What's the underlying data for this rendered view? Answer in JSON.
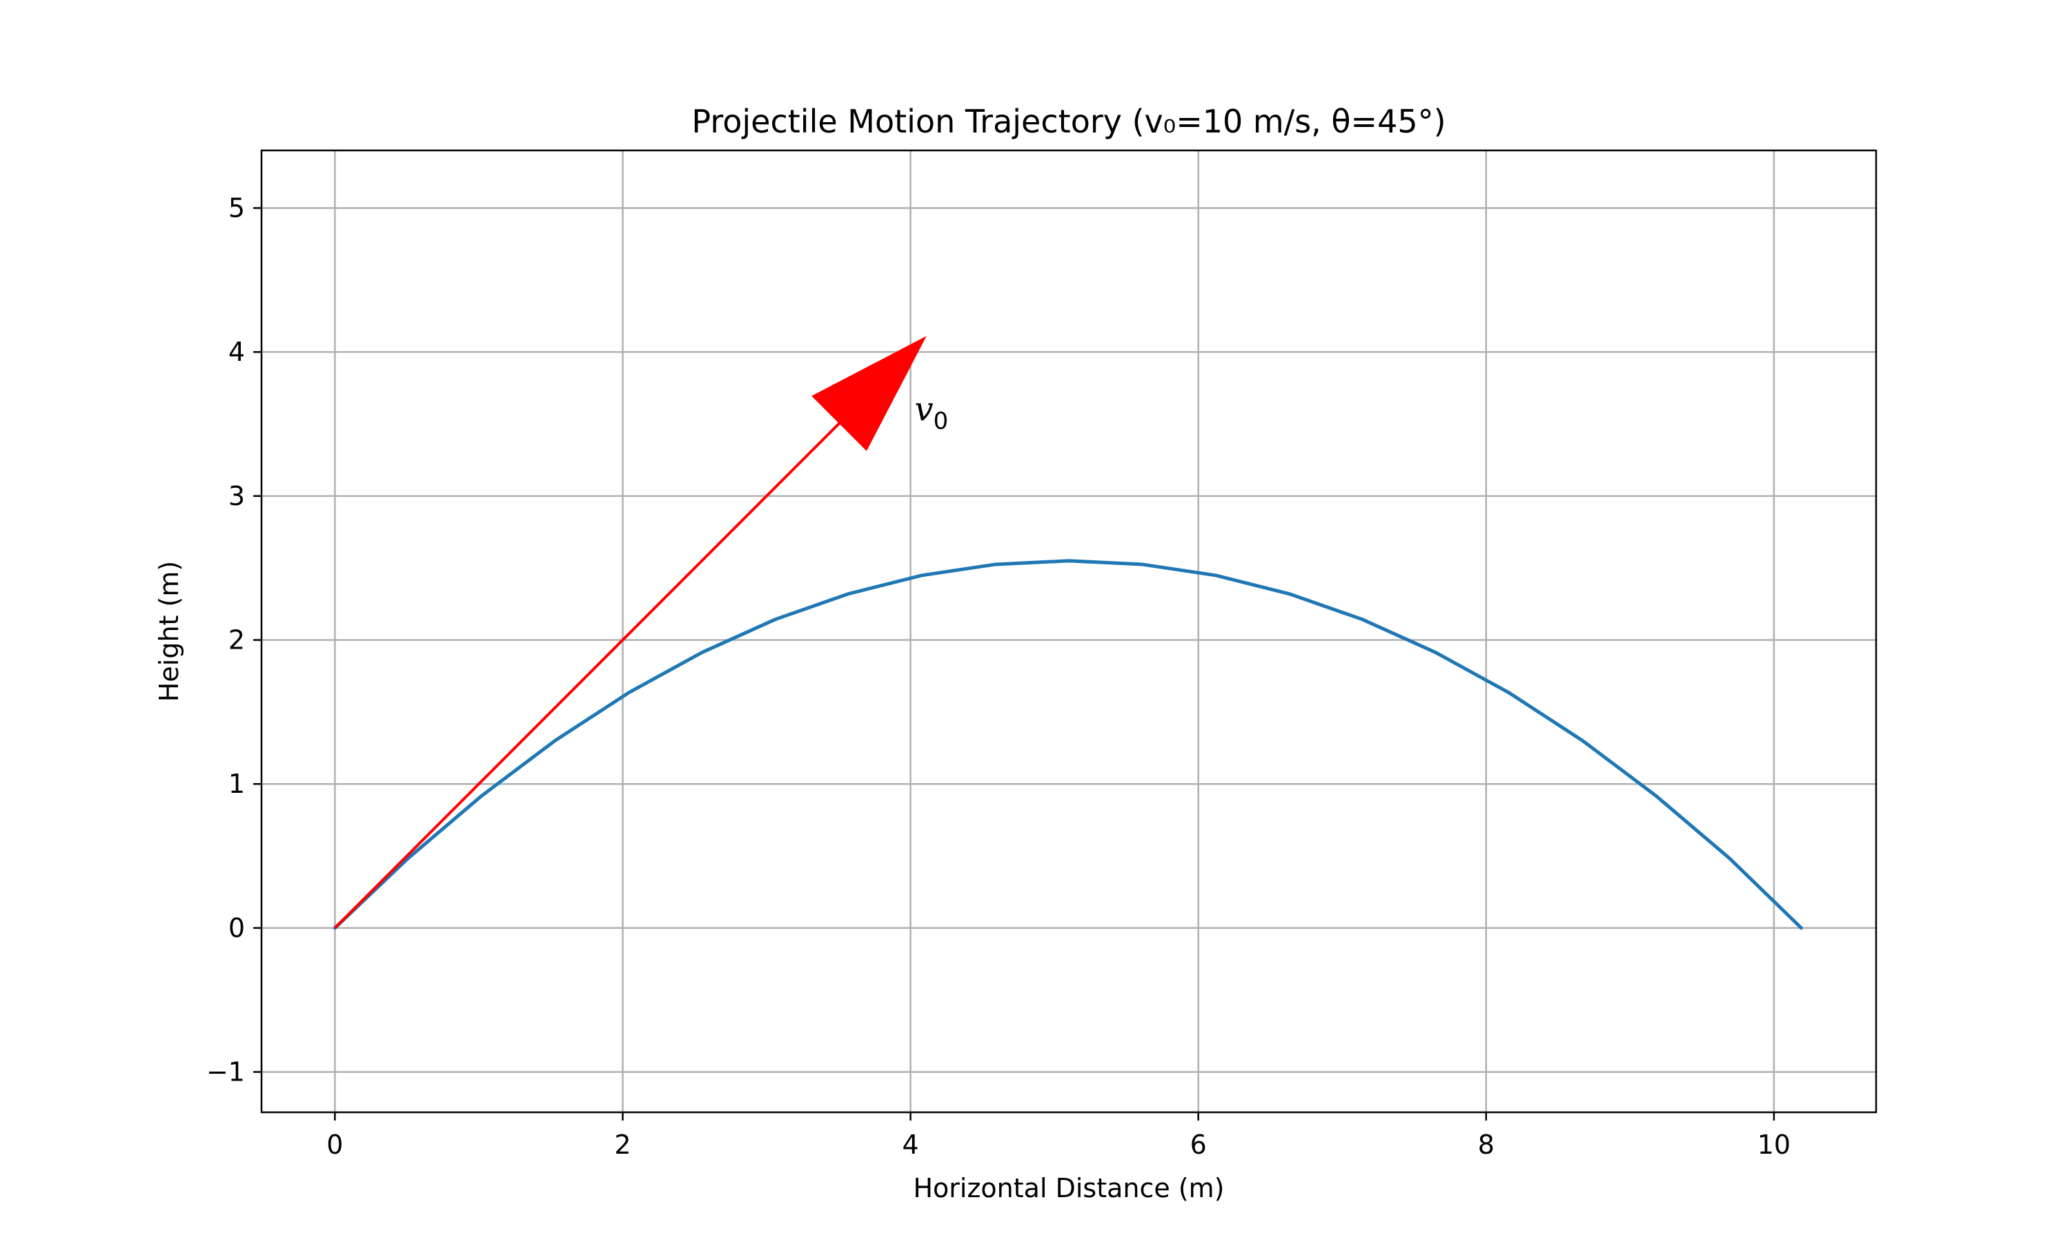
{
  "chart_data": {
    "type": "line",
    "title": "Projectile Motion Trajectory (v₀=10 m/s, θ=45°)",
    "xlabel": "Horizontal Distance (m)",
    "ylabel": "Height (m)",
    "xlim": [
      -0.51,
      10.71
    ],
    "ylim": [
      -1.28,
      5.4
    ],
    "xticks": [
      0,
      2,
      4,
      6,
      8,
      10
    ],
    "xtick_labels": [
      "0",
      "2",
      "4",
      "6",
      "8",
      "10"
    ],
    "yticks": [
      -1,
      0,
      1,
      2,
      3,
      4,
      5
    ],
    "ytick_labels": [
      "−1",
      "0",
      "1",
      "2",
      "3",
      "4",
      "5"
    ],
    "grid": true,
    "series": [
      {
        "color": "#1f77b4",
        "x": [
          0,
          0.51,
          1.02,
          1.53,
          2.04,
          2.55,
          3.06,
          3.57,
          4.08,
          4.59,
          5.1,
          5.61,
          6.12,
          6.63,
          7.14,
          7.65,
          8.16,
          8.67,
          9.18,
          9.69,
          10.19
        ],
        "y": [
          0,
          0.485,
          0.918,
          1.301,
          1.633,
          1.913,
          2.143,
          2.321,
          2.449,
          2.525,
          2.55,
          2.525,
          2.449,
          2.321,
          2.143,
          1.913,
          1.633,
          1.301,
          0.918,
          0.485,
          0
        ]
      }
    ],
    "annotations": [
      {
        "type": "arrow",
        "color": "#ff0000",
        "from": [
          0,
          0
        ],
        "to": [
          4.1,
          4.1
        ],
        "label": "v",
        "label_subscript": "0"
      }
    ]
  }
}
